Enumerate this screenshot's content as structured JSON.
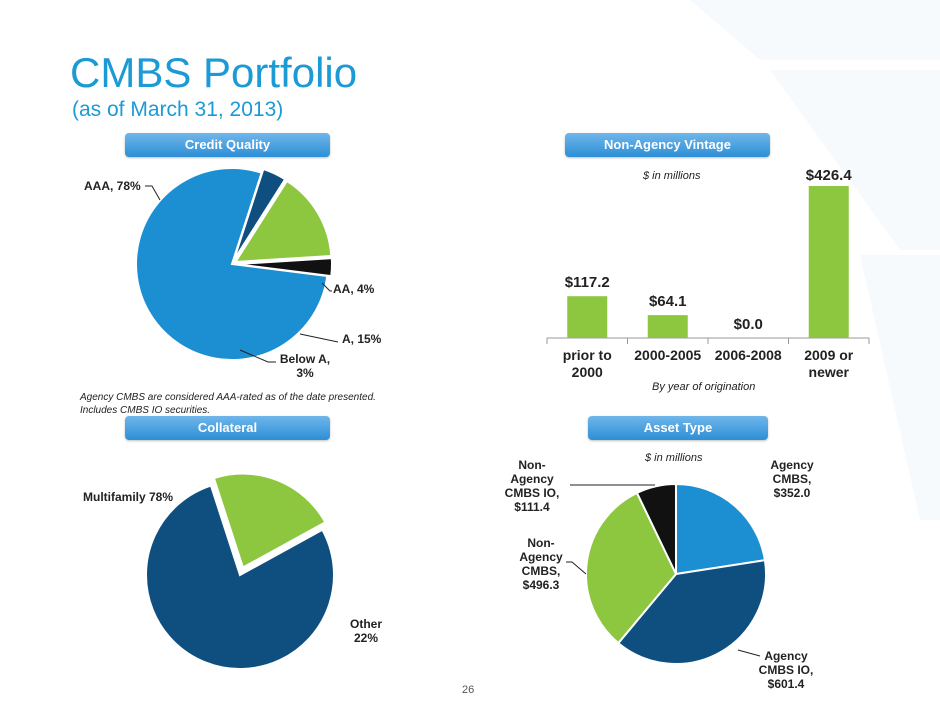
{
  "page": {
    "title": "CMBS Portfolio",
    "subtitle": "(as of March 31, 2013)",
    "page_number": "26"
  },
  "sections": {
    "credit_quality": "Credit Quality",
    "non_agency_vintage": "Non-Agency Vintage",
    "collateral": "Collateral",
    "asset_type": "Asset Type"
  },
  "notes": {
    "credit_note_1": "Agency CMBS are considered AAA-rated  as of the date presented.",
    "credit_note_2": "Includes CMBS IO securities.",
    "vintage_units": "$ in millions",
    "vintage_axis": "By year of origination",
    "asset_units": "$ in millions"
  },
  "colors": {
    "light_blue": "#1b8fd2",
    "dark_blue": "#0f4f7f",
    "green": "#8dc63f",
    "black": "#111111",
    "accent": "#1b9ad6"
  },
  "chart_data": [
    {
      "type": "pie",
      "title": "Credit Quality",
      "slices": [
        {
          "label": "AAA, 78%",
          "value": 78,
          "color": "#1b8fd2"
        },
        {
          "label": "AA, 4%",
          "value": 4,
          "color": "#0f4f7f"
        },
        {
          "label": "A, 15%",
          "value": 15,
          "color": "#8dc63f"
        },
        {
          "label": "Below A, 3%",
          "value": 3,
          "color": "#111111"
        }
      ]
    },
    {
      "type": "bar",
      "title": "Non-Agency Vintage",
      "categories": [
        "prior to 2000",
        "2000-2005",
        "2006-2008",
        "2009 or newer"
      ],
      "values": [
        117.2,
        64.1,
        0.0,
        426.4
      ],
      "value_labels": [
        "$117.2",
        "$64.1",
        "$0.0",
        "$426.4"
      ],
      "xlabel": "By year of origination",
      "ylabel": "",
      "ylim": [
        0,
        430
      ],
      "color": "#8dc63f"
    },
    {
      "type": "pie",
      "title": "Collateral",
      "slices": [
        {
          "label": "Multifamily 78%",
          "value": 78,
          "color": "#0f4f7f"
        },
        {
          "label": "Other 22%",
          "value": 22,
          "color": "#8dc63f"
        }
      ]
    },
    {
      "type": "pie",
      "title": "Asset Type",
      "slices": [
        {
          "label": "Agency CMBS, $352.0",
          "value": 352.0,
          "color": "#1b8fd2"
        },
        {
          "label": "Agency CMBS IO, $601.4",
          "value": 601.4,
          "color": "#0f4f7f"
        },
        {
          "label": "Non-Agency CMBS, $496.3",
          "value": 496.3,
          "color": "#8dc63f"
        },
        {
          "label": "Non-Agency CMBS IO, $111.4",
          "value": 111.4,
          "color": "#111111"
        }
      ]
    }
  ]
}
